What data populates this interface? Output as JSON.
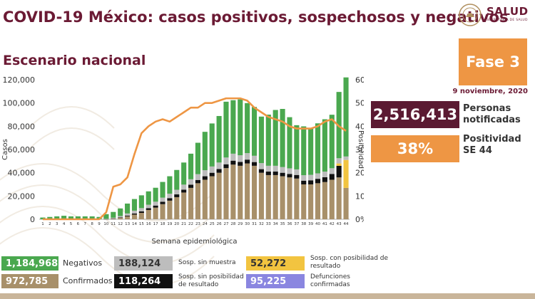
{
  "header": {
    "title": "COVID-19 México: casos positivos, sospechosos y negativos",
    "subtitle": "Escenario nacional",
    "logo_text": "SALUD",
    "logo_sub": "SECRETARÍA DE SALUD"
  },
  "phase": {
    "label": "Fase 3",
    "date": "9 noviembre, 2020"
  },
  "stats": {
    "notified_value": "2,516,413",
    "notified_label": "Personas notificadas",
    "positivity_value": "38%",
    "positivity_label": "Positividad SE 44"
  },
  "legend": [
    {
      "value": "1,184,968",
      "label": "Negativos",
      "color": "#4aa84f",
      "text_color": "#ffffff"
    },
    {
      "value": "972,785",
      "label": "Confirmados",
      "color": "#a8906a",
      "text_color": "#ffffff"
    },
    {
      "value": "188,124",
      "label": "Sosp. sin muestra",
      "color": "#bdbdbd",
      "text_color": "#333333"
    },
    {
      "value": "118,264",
      "label": "Sosp. sin posibilidad de resultado",
      "color": "#111111",
      "text_color": "#ffffff"
    },
    {
      "value": "52,272",
      "label": "Sosp. con posibilidad de resultado",
      "color": "#f2c440",
      "text_color": "#333333"
    },
    {
      "value": "95,225",
      "label": "Defunciones confirmadas",
      "color": "#8a86e0",
      "text_color": "#ffffff"
    }
  ],
  "chart_data": {
    "type": "bar",
    "stacked": true,
    "xlabel": "Semana epidemiológica",
    "ylabel": "Casos",
    "y2label": "Positividad",
    "ylim": [
      0,
      120000
    ],
    "y2lim": [
      0,
      60
    ],
    "yticks": [
      "0",
      "20,000",
      "40,000",
      "60,000",
      "80,000",
      "100,000",
      "120,000"
    ],
    "y2ticks": [
      "0%",
      "10%",
      "20%",
      "30%",
      "40%",
      "50%",
      "60%"
    ],
    "categories": [
      "1",
      "2",
      "3",
      "4",
      "5",
      "6",
      "7",
      "8",
      "9",
      "10",
      "11",
      "12",
      "13",
      "14",
      "15",
      "16",
      "17",
      "18",
      "19",
      "20",
      "21",
      "22",
      "23",
      "24",
      "25",
      "26",
      "27",
      "28",
      "29",
      "30",
      "31",
      "32",
      "33",
      "34",
      "35",
      "36",
      "37",
      "38",
      "39",
      "40",
      "41",
      "42",
      "43",
      "44"
    ],
    "series": [
      {
        "name": "Confirmados",
        "color": "#a8906a",
        "values": [
          0,
          0,
          0,
          0,
          0,
          0,
          0,
          0,
          0,
          100,
          500,
          1200,
          2500,
          4000,
          5500,
          8000,
          10000,
          13000,
          16000,
          19000,
          23000,
          27000,
          31000,
          34000,
          37000,
          40000,
          44000,
          47000,
          46000,
          48000,
          46000,
          40000,
          38000,
          38000,
          37000,
          36000,
          35000,
          30000,
          30000,
          31000,
          32000,
          34000,
          36000,
          27000
        ]
      },
      {
        "name": "Sosp. sin posibilidad de resultado",
        "color": "#111111",
        "values": [
          0,
          0,
          0,
          0,
          0,
          0,
          0,
          0,
          0,
          100,
          200,
          400,
          700,
          1000,
          1300,
          1500,
          1800,
          2000,
          2200,
          2400,
          2500,
          2700,
          2800,
          3000,
          3000,
          3200,
          3300,
          3400,
          3300,
          3300,
          3200,
          3100,
          3000,
          3000,
          3000,
          3000,
          3100,
          3200,
          3500,
          3800,
          4200,
          5000,
          10000,
          0
        ]
      },
      {
        "name": "Sosp. con posibilidad de resultado",
        "color": "#f2c440",
        "values": [
          0,
          0,
          0,
          0,
          0,
          0,
          0,
          0,
          0,
          0,
          0,
          0,
          0,
          0,
          0,
          0,
          0,
          0,
          0,
          0,
          0,
          0,
          0,
          0,
          0,
          0,
          0,
          0,
          0,
          0,
          0,
          0,
          0,
          0,
          0,
          0,
          0,
          0,
          0,
          0,
          0,
          0,
          2000,
          24000
        ]
      },
      {
        "name": "Sosp. sin muestra",
        "color": "#bdbdbd",
        "values": [
          0,
          0,
          0,
          0,
          0,
          0,
          0,
          0,
          0,
          200,
          600,
          1200,
          1800,
          2400,
          2800,
          3000,
          3300,
          3600,
          3800,
          4000,
          4300,
          4700,
          5000,
          5200,
          5400,
          5600,
          5800,
          6000,
          5800,
          5600,
          5400,
          5200,
          5000,
          5000,
          4900,
          4800,
          4800,
          4700,
          4700,
          4700,
          4800,
          4900,
          4500,
          3000
        ]
      },
      {
        "name": "Negativos",
        "color": "#4aa84f",
        "values": [
          1500,
          2000,
          2500,
          3000,
          2500,
          2500,
          2500,
          2500,
          2000,
          4000,
          5000,
          6500,
          8500,
          10000,
          11000,
          11500,
          12000,
          13500,
          15000,
          17000,
          19000,
          22000,
          27000,
          33000,
          37000,
          40000,
          48000,
          46000,
          48000,
          43000,
          42000,
          40000,
          44000,
          48000,
          50000,
          44000,
          38000,
          42000,
          40000,
          43000,
          45000,
          46000,
          57000,
          68000
        ]
      }
    ],
    "positivity": {
      "name": "Positividad",
      "color": "#ee9644",
      "values": [
        0,
        0,
        0,
        0,
        0,
        0,
        0,
        0,
        0,
        3,
        14,
        15,
        18,
        28,
        37,
        40,
        42,
        43,
        42,
        44,
        46,
        48,
        48,
        50,
        50,
        51,
        52,
        52,
        52,
        51,
        48,
        46,
        44,
        43,
        42,
        40,
        39,
        39,
        39,
        40,
        42,
        43,
        40,
        38
      ]
    }
  }
}
